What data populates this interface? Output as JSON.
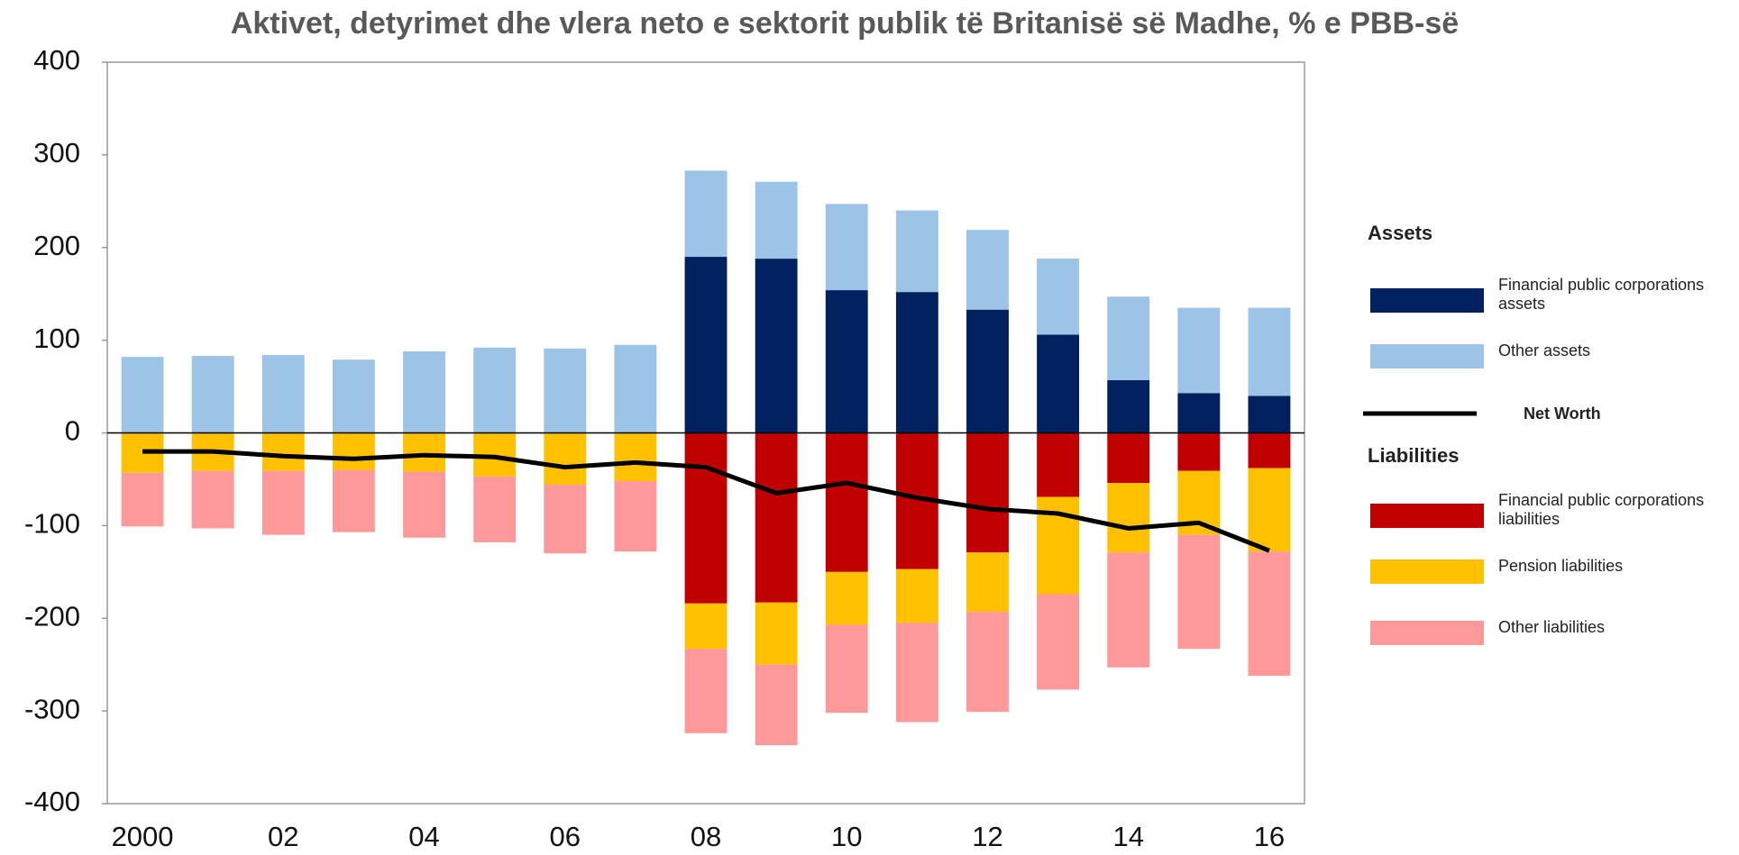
{
  "chart_data": {
    "type": "bar",
    "title": "Aktivet, detyrimet dhe vlera neto e sektorit publik të Britanisë së Madhe, % e PBB-së",
    "categories": [
      "2000",
      null,
      "02",
      null,
      "04",
      null,
      "06",
      null,
      "08",
      null,
      "10",
      null,
      "12",
      null,
      "14",
      null,
      "16"
    ],
    "legend_titles": [
      "Assets",
      "Liabilities"
    ],
    "series": [
      {
        "name": "Financial public corporations assets",
        "color": "#002060",
        "values": [
          0,
          0,
          0,
          0,
          0,
          0,
          0,
          0,
          190,
          188,
          154,
          152,
          133,
          106,
          57,
          43,
          40
        ]
      },
      {
        "name": "Other assets",
        "color": "#9DC3E6",
        "values": [
          82,
          83,
          84,
          79,
          88,
          92,
          91,
          95,
          93,
          83,
          93,
          88,
          86,
          82,
          90,
          92,
          95
        ]
      },
      {
        "name": "Net Worth",
        "color": "#000000",
        "kind": "line",
        "values": [
          -20,
          -20,
          -25,
          -28,
          -24,
          -26,
          -37,
          -32,
          -37,
          -65,
          -54,
          -70,
          -82,
          -87,
          -103,
          -97,
          -127
        ]
      },
      {
        "name": "Financial public corporations liabilities",
        "color": "#C00000",
        "values": [
          0,
          0,
          0,
          0,
          0,
          0,
          0,
          0,
          -184,
          -183,
          -150,
          -147,
          -129,
          -69,
          -54,
          -41,
          -38
        ]
      },
      {
        "name": "Pension liabilities",
        "color": "#FFC000",
        "values": [
          -43,
          -41,
          -41,
          -40,
          -42,
          -47,
          -56,
          -52,
          -49,
          -67,
          -57,
          -58,
          -64,
          -105,
          -75,
          -69,
          -90
        ]
      },
      {
        "name": "Other liabilities",
        "color": "#FF9999",
        "values": [
          -58,
          -62,
          -69,
          -67,
          -71,
          -71,
          -74,
          -76,
          -91,
          -87,
          -95,
          -107,
          -108,
          -103,
          -124,
          -123,
          -134
        ]
      }
    ],
    "ylim": [
      -400,
      400
    ],
    "yticks": [
      -400,
      -300,
      -200,
      -100,
      0,
      100,
      200,
      300,
      400
    ]
  }
}
